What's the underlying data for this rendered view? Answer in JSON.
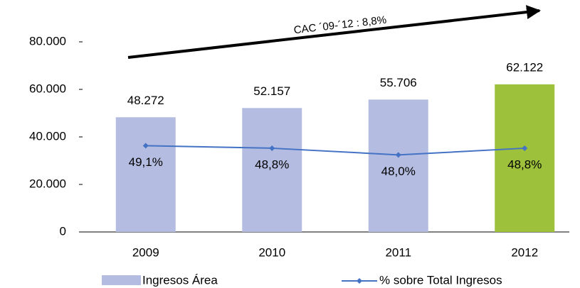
{
  "chart_data": {
    "type": "bar",
    "categories": [
      "2009",
      "2010",
      "2011",
      "2012"
    ],
    "series": [
      {
        "name": "Ingresos Área",
        "colors": [
          "#b4bde1",
          "#b4bde1",
          "#b4bde1",
          "#9dc13b"
        ],
        "values": [
          48272,
          52157,
          55706,
          62122
        ],
        "value_labels": [
          "48.272",
          "52.157",
          "55.706",
          "62.122"
        ]
      },
      {
        "name": "% sobre Total Ingresos",
        "type": "line",
        "axis": "y2",
        "color": "#4472c4",
        "values": [
          49.1,
          48.8,
          48.0,
          48.8
        ],
        "value_labels": [
          "49,1%",
          "48,8%",
          "48,0%",
          "48,8%"
        ]
      }
    ],
    "ylim": [
      0,
      80000
    ],
    "yticks": [
      0,
      {
        "value": 20000,
        "label": "20.000"
      },
      {
        "value": 40000,
        "label": "40.000"
      },
      {
        "value": 60000,
        "label": "60.000"
      },
      {
        "value": 80000,
        "label": "80.000"
      }
    ],
    "y2lim": [
      38.8,
      61.5
    ],
    "annotation": "CAC ´09-´12 : 8,8%",
    "legend": "bottom"
  }
}
